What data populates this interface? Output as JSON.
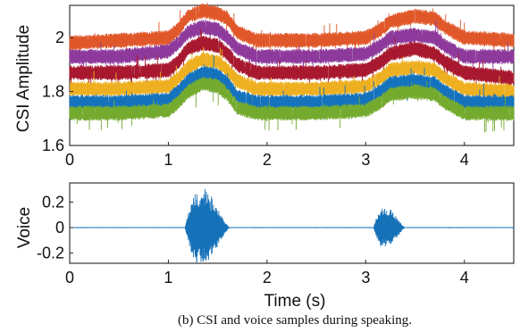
{
  "caption": "(b) CSI and voice samples during speaking.",
  "colors": {
    "orange": "#e0582a",
    "purple": "#8e3a9c",
    "red": "#a8182e",
    "yellow": "#eeb021",
    "blue": "#1573bd",
    "green": "#74ab2f",
    "voice": "#1571b8"
  },
  "chart_data": [
    {
      "type": "line",
      "ylabel": "CSI Amplitude",
      "xlabel": "",
      "xlim": [
        0,
        4.5
      ],
      "ylim": [
        1.6,
        2.12
      ],
      "xticks": [
        "0",
        "1",
        "2",
        "3",
        "4"
      ],
      "yticks": [
        "1.6",
        "1.8",
        "2"
      ],
      "x": [
        0,
        0.5,
        1.0,
        1.1,
        1.2,
        1.35,
        1.5,
        1.6,
        1.7,
        1.9,
        2.5,
        3.0,
        3.15,
        3.25,
        3.5,
        3.7,
        3.8,
        4.0,
        4.5
      ],
      "series": [
        {
          "values": [
            1.98,
            1.99,
            2.0,
            2.03,
            2.08,
            2.1,
            2.09,
            2.07,
            2.02,
            1.99,
            1.99,
            2.0,
            2.03,
            2.06,
            2.08,
            2.07,
            2.04,
            2.0,
            1.99
          ]
        },
        {
          "values": [
            1.93,
            1.93,
            1.95,
            1.98,
            2.02,
            2.04,
            2.03,
            2.0,
            1.96,
            1.93,
            1.93,
            1.94,
            1.97,
            2.0,
            2.01,
            2.0,
            1.97,
            1.93,
            1.93
          ]
        },
        {
          "values": [
            1.87,
            1.87,
            1.88,
            1.91,
            1.96,
            1.98,
            1.97,
            1.94,
            1.9,
            1.87,
            1.87,
            1.88,
            1.91,
            1.94,
            1.96,
            1.94,
            1.91,
            1.87,
            1.85
          ]
        },
        {
          "values": [
            1.81,
            1.81,
            1.82,
            1.85,
            1.89,
            1.92,
            1.91,
            1.88,
            1.84,
            1.81,
            1.81,
            1.82,
            1.85,
            1.88,
            1.89,
            1.88,
            1.85,
            1.81,
            1.8
          ]
        },
        {
          "values": [
            1.76,
            1.76,
            1.77,
            1.8,
            1.84,
            1.87,
            1.86,
            1.83,
            1.78,
            1.76,
            1.76,
            1.77,
            1.8,
            1.83,
            1.84,
            1.83,
            1.8,
            1.76,
            1.76
          ]
        },
        {
          "values": [
            1.72,
            1.72,
            1.73,
            1.76,
            1.8,
            1.83,
            1.82,
            1.79,
            1.74,
            1.72,
            1.72,
            1.73,
            1.76,
            1.79,
            1.8,
            1.79,
            1.76,
            1.72,
            1.72
          ]
        }
      ]
    },
    {
      "type": "line",
      "ylabel": "Voice",
      "xlabel": "Time (s)",
      "xlim": [
        0,
        4.5
      ],
      "ylim": [
        -0.28,
        0.35
      ],
      "xticks": [
        "0",
        "1",
        "2",
        "3",
        "4"
      ],
      "yticks": [
        "0.2",
        "0",
        "-0.2"
      ],
      "bursts": [
        {
          "start": 1.17,
          "end": 1.62,
          "peak": 0.32
        },
        {
          "start": 3.08,
          "end": 3.4,
          "peak": 0.17
        }
      ]
    }
  ]
}
